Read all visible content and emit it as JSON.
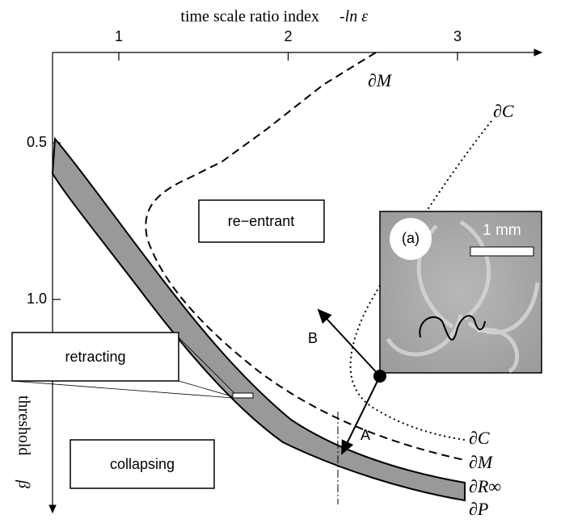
{
  "axes": {
    "top_title": "time scale ratio index",
    "top_symbol": "-ln ε",
    "left_title": "threshold",
    "left_symbol": "β",
    "xticks": [
      1,
      2,
      3
    ],
    "yticks": [
      0.5,
      {
        "value": 1,
        "label": "1.0"
      }
    ]
  },
  "regions": {
    "reentrant": "re−entrant",
    "retracting": "retracting",
    "collapsing": "collapsing"
  },
  "curves": {
    "m_top": "∂M",
    "c_top": "∂C",
    "c_bottom": "∂C",
    "m_bottom": "∂M",
    "r_inf": "∂R∞",
    "p": "∂P"
  },
  "arrows": {
    "a": "A",
    "b": "B"
  },
  "inset": {
    "label": "(a)",
    "scale": "1 mm"
  }
}
